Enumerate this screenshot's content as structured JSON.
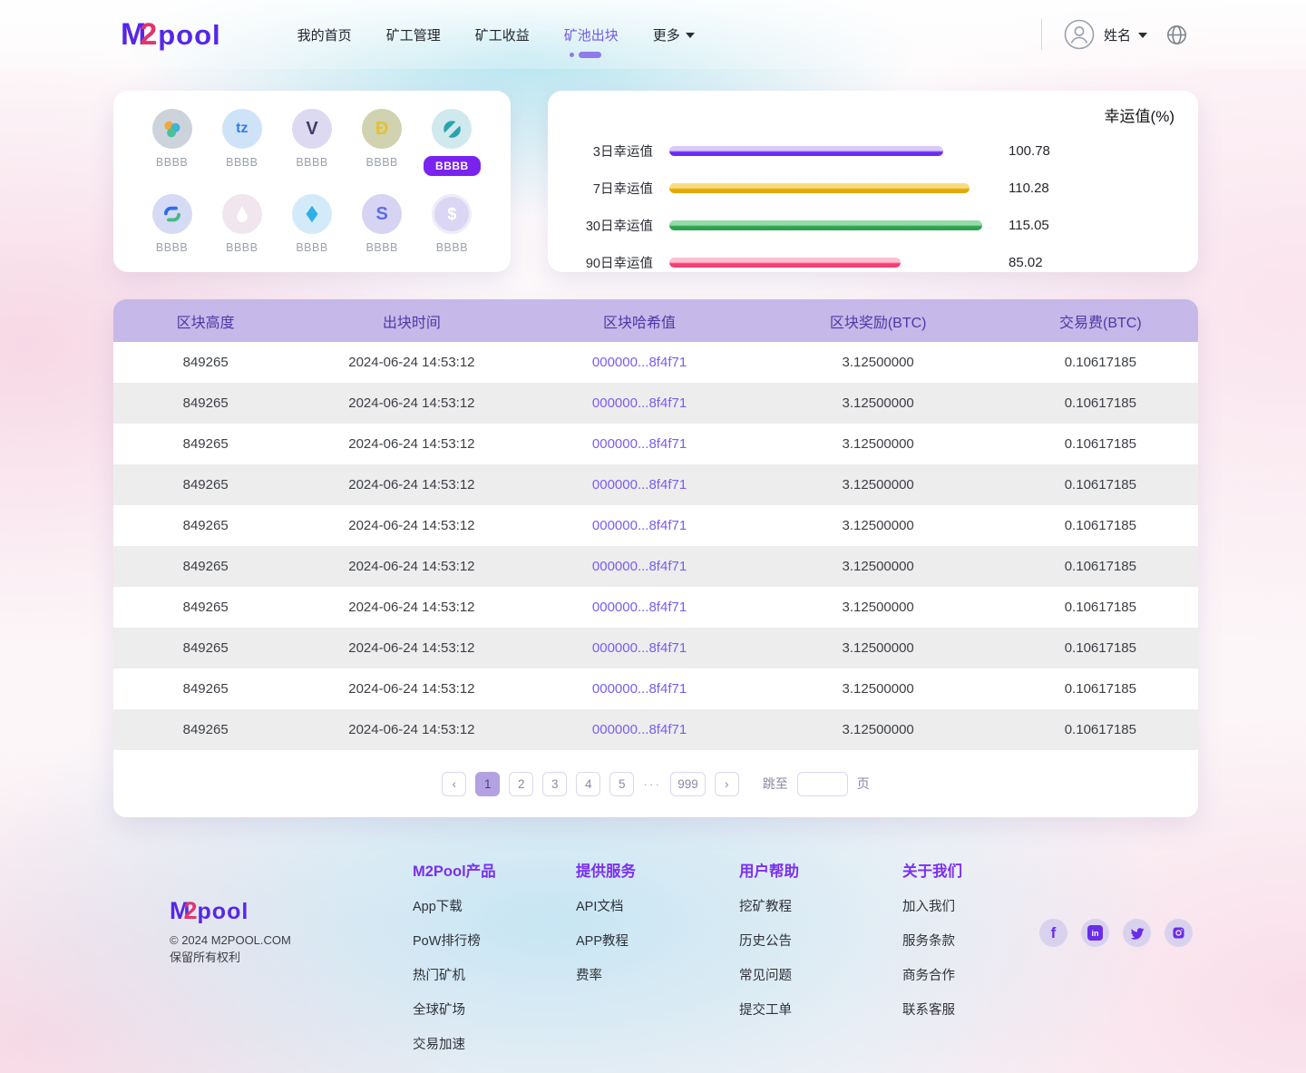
{
  "header": {
    "logo": {
      "m": "M",
      "two": "2",
      "pool": "pool"
    },
    "nav": [
      {
        "label": "我的首页",
        "active": false,
        "has_caret": false
      },
      {
        "label": "矿工管理",
        "active": false,
        "has_caret": false
      },
      {
        "label": "矿工收益",
        "active": false,
        "has_caret": false
      },
      {
        "label": "矿池出块",
        "active": true,
        "has_caret": false
      },
      {
        "label": "更多",
        "active": false,
        "has_caret": true
      }
    ],
    "user_name": "姓名"
  },
  "coin_panel": {
    "selected_badge_color": "#7a23f0",
    "coins": [
      {
        "label": "BBBB",
        "icon": "nem",
        "selected": false
      },
      {
        "label": "BBBB",
        "icon": "tezos",
        "selected": false
      },
      {
        "label": "BBBB",
        "icon": "vechain",
        "selected": false
      },
      {
        "label": "BBBB",
        "icon": "dogecoin",
        "selected": false
      },
      {
        "label": "BBBB",
        "icon": "ontology",
        "selected": true
      },
      {
        "label": "BBBB",
        "icon": "decred",
        "selected": false
      },
      {
        "label": "BBBB",
        "icon": "lisk",
        "selected": false
      },
      {
        "label": "BBBB",
        "icon": "bitshares",
        "selected": false
      },
      {
        "label": "BBBB",
        "icon": "stratis",
        "selected": false
      },
      {
        "label": "BBBB",
        "icon": "dollar",
        "selected": false
      }
    ]
  },
  "chart_data": {
    "type": "bar",
    "orientation": "horizontal",
    "title": "幸运值(%)",
    "categories": [
      "3日幸运值",
      "7日幸运值",
      "30日幸运值",
      "90日幸运值"
    ],
    "values": [
      100.78,
      110.28,
      115.05,
      85.02
    ],
    "value_labels": [
      "100.78",
      "110.28",
      "115.05",
      "85.02"
    ],
    "xlim": [
      0,
      120
    ],
    "grid": false,
    "legend": false,
    "bar_colors": [
      {
        "light": "#d9c9f9",
        "dark": "#6b2bf2"
      },
      {
        "light": "#f9dc7e",
        "dark": "#e2a906"
      },
      {
        "light": "#93dcaa",
        "dark": "#2da24f"
      },
      {
        "light": "#fbc0d3",
        "dark": "#f43f72"
      }
    ]
  },
  "table": {
    "columns": [
      "区块高度",
      "出块时间",
      "区块哈希值",
      "区块奖励(BTC)",
      "交易费(BTC)"
    ],
    "rows": [
      [
        "849265",
        "2024-06-24 14:53:12",
        "000000...8f4f71",
        "3.12500000",
        "0.10617185"
      ],
      [
        "849265",
        "2024-06-24 14:53:12",
        "000000...8f4f71",
        "3.12500000",
        "0.10617185"
      ],
      [
        "849265",
        "2024-06-24 14:53:12",
        "000000...8f4f71",
        "3.12500000",
        "0.10617185"
      ],
      [
        "849265",
        "2024-06-24 14:53:12",
        "000000...8f4f71",
        "3.12500000",
        "0.10617185"
      ],
      [
        "849265",
        "2024-06-24 14:53:12",
        "000000...8f4f71",
        "3.12500000",
        "0.10617185"
      ],
      [
        "849265",
        "2024-06-24 14:53:12",
        "000000...8f4f71",
        "3.12500000",
        "0.10617185"
      ],
      [
        "849265",
        "2024-06-24 14:53:12",
        "000000...8f4f71",
        "3.12500000",
        "0.10617185"
      ],
      [
        "849265",
        "2024-06-24 14:53:12",
        "000000...8f4f71",
        "3.12500000",
        "0.10617185"
      ],
      [
        "849265",
        "2024-06-24 14:53:12",
        "000000...8f4f71",
        "3.12500000",
        "0.10617185"
      ],
      [
        "849265",
        "2024-06-24 14:53:12",
        "000000...8f4f71",
        "3.12500000",
        "0.10617185"
      ]
    ]
  },
  "pagination": {
    "prev_icon": "‹",
    "next_icon": "›",
    "pages": [
      "1",
      "2",
      "3",
      "4",
      "5"
    ],
    "active_page": "1",
    "ellipsis": "···",
    "last_page": "999",
    "jump_label": "跳至",
    "unit_label": "页"
  },
  "footer": {
    "copyright_line1": "© 2024 M2POOL.COM",
    "copyright_line2": "保留所有权利",
    "accent_color": "#7b2ff2",
    "columns": [
      {
        "title": "M2Pool产品",
        "links": [
          "App下载",
          "PoW排行榜",
          "热门矿机",
          "全球矿场",
          "交易加速"
        ]
      },
      {
        "title": "提供服务",
        "links": [
          "API文档",
          "APP教程",
          "费率"
        ]
      },
      {
        "title": "用户帮助",
        "links": [
          "挖矿教程",
          "历史公告",
          "常见问题",
          "提交工单"
        ]
      },
      {
        "title": "关于我们",
        "links": [
          "加入我们",
          "服务条款",
          "商务合作",
          "联系客服"
        ]
      }
    ],
    "socials": [
      "facebook",
      "linkedin",
      "twitter",
      "instagram"
    ]
  }
}
